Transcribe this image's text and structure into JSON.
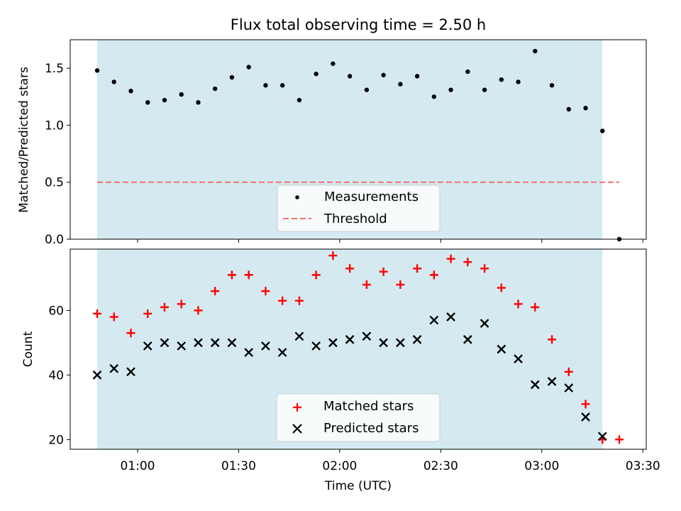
{
  "chart_data": [
    {
      "type": "scatter",
      "title": "Flux total observing time = 2.50 h",
      "xlabel": "",
      "ylabel": "Matched/Predicted stars",
      "xlim": [
        "00:40",
        "03:31"
      ],
      "ylim": [
        0,
        1.75
      ],
      "yticks": [
        0.0,
        0.5,
        1.0,
        1.5
      ],
      "ytick_labels": [
        "0.0",
        "0.5",
        "1.0",
        "1.5"
      ],
      "shaded_interval": [
        "00:48",
        "03:18"
      ],
      "shade_color": "#d4eaf0",
      "threshold": 0.5,
      "threshold_color": "#f07070",
      "legend_position": "lower center",
      "series": [
        {
          "name": "Measurements",
          "color": "#000000",
          "marker": "dot",
          "x": [
            "00:48",
            "00:53",
            "00:58",
            "01:03",
            "01:08",
            "01:13",
            "01:18",
            "01:23",
            "01:28",
            "01:33",
            "01:38",
            "01:43",
            "01:48",
            "01:53",
            "01:58",
            "02:03",
            "02:08",
            "02:13",
            "02:18",
            "02:23",
            "02:28",
            "02:33",
            "02:38",
            "02:43",
            "02:48",
            "02:53",
            "02:58",
            "03:03",
            "03:08",
            "03:13",
            "03:18",
            "03:23"
          ],
          "y": [
            1.48,
            1.38,
            1.3,
            1.2,
            1.22,
            1.27,
            1.2,
            1.32,
            1.42,
            1.51,
            1.35,
            1.35,
            1.22,
            1.45,
            1.54,
            1.43,
            1.31,
            1.44,
            1.36,
            1.43,
            1.25,
            1.31,
            1.47,
            1.31,
            1.4,
            1.38,
            1.65,
            1.35,
            1.14,
            1.15,
            0.95,
            0.0
          ]
        },
        {
          "name": "Threshold",
          "color": "#f07070",
          "marker": "dashed-line"
        }
      ]
    },
    {
      "type": "scatter",
      "title": "",
      "xlabel": "Time (UTC)",
      "ylabel": "Count",
      "xlim": [
        "00:40",
        "03:31"
      ],
      "ylim": [
        17,
        79
      ],
      "yticks": [
        20,
        40,
        60
      ],
      "ytick_labels": [
        "20",
        "40",
        "60"
      ],
      "xticks": [
        "01:00",
        "01:30",
        "02:00",
        "02:30",
        "03:00",
        "03:30"
      ],
      "xtick_labels": [
        "01:00",
        "01:30",
        "02:00",
        "02:30",
        "03:00",
        "03:30"
      ],
      "shaded_interval": [
        "00:48",
        "03:18"
      ],
      "shade_color": "#d4eaf0",
      "legend_position": "lower center",
      "series": [
        {
          "name": "Matched stars",
          "color": "#ff0000",
          "marker": "plus",
          "x": [
            "00:48",
            "00:53",
            "00:58",
            "01:03",
            "01:08",
            "01:13",
            "01:18",
            "01:23",
            "01:28",
            "01:33",
            "01:38",
            "01:43",
            "01:48",
            "01:53",
            "01:58",
            "02:03",
            "02:08",
            "02:13",
            "02:18",
            "02:23",
            "02:28",
            "02:33",
            "02:38",
            "02:43",
            "02:48",
            "02:53",
            "02:58",
            "03:03",
            "03:08",
            "03:13",
            "03:18",
            "03:23"
          ],
          "y": [
            59,
            58,
            53,
            59,
            61,
            62,
            60,
            66,
            71,
            71,
            66,
            63,
            63,
            71,
            77,
            73,
            68,
            72,
            68,
            73,
            71,
            76,
            75,
            73,
            67,
            62,
            61,
            51,
            41,
            31,
            20,
            20
          ]
        },
        {
          "name": "Predicted stars",
          "color": "#000000",
          "marker": "x",
          "x": [
            "00:48",
            "00:53",
            "00:58",
            "01:03",
            "01:08",
            "01:13",
            "01:18",
            "01:23",
            "01:28",
            "01:33",
            "01:38",
            "01:43",
            "01:48",
            "01:53",
            "01:58",
            "02:03",
            "02:08",
            "02:13",
            "02:18",
            "02:23",
            "02:28",
            "02:33",
            "02:38",
            "02:43",
            "02:48",
            "02:53",
            "02:58",
            "03:03",
            "03:08",
            "03:13",
            "03:18"
          ],
          "y": [
            40,
            42,
            41,
            49,
            50,
            49,
            50,
            50,
            50,
            47,
            49,
            47,
            52,
            49,
            50,
            51,
            52,
            50,
            50,
            51,
            57,
            58,
            51,
            56,
            48,
            45,
            37,
            38,
            36,
            27,
            21
          ]
        }
      ]
    }
  ]
}
